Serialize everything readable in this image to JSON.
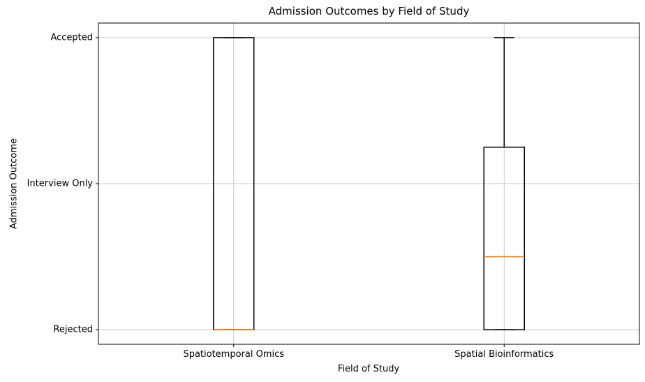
{
  "figure": {
    "background": "#ffffff"
  },
  "chart_data": {
    "type": "box",
    "title": "Admission Outcomes by Field of Study",
    "xlabel": "Field of Study",
    "ylabel": "Admission Outcome",
    "categories": [
      "Spatiotemporal Omics",
      "Spatial Bioinformatics"
    ],
    "ytick_labels": [
      "Rejected",
      "Interview Only",
      "Accepted"
    ],
    "ytick_values": [
      0,
      1,
      2
    ],
    "ylim": [
      -0.1,
      2.1
    ],
    "grid": true,
    "legend": "none",
    "boxes": [
      {
        "category": "Spatiotemporal Omics",
        "whisker_low": 0,
        "q1": 0,
        "median": 0,
        "q3": 2,
        "whisker_high": 2
      },
      {
        "category": "Spatial Bioinformatics",
        "whisker_low": 0,
        "q1": 0,
        "median": 0.5,
        "q3": 1.25,
        "whisker_high": 2
      }
    ],
    "colors": {
      "box_edge": "#000000",
      "median": "#ff7f0e",
      "grid": "#c9c9c9",
      "spine": "#000000",
      "text": "#000000"
    }
  }
}
